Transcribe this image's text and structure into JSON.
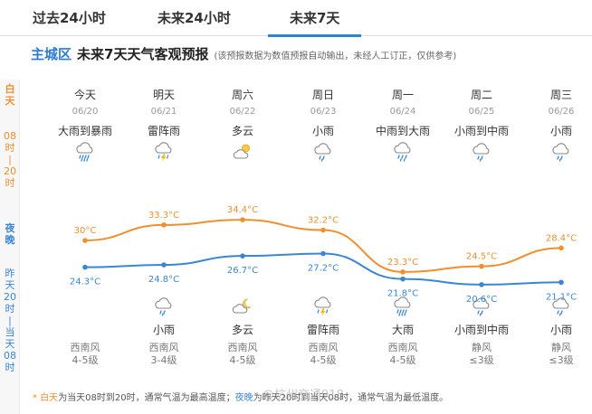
{
  "tabs": [
    {
      "label": "过去24小时"
    },
    {
      "label": "未来24小时"
    },
    {
      "label": "未来7天"
    }
  ],
  "header": {
    "city": "主城区",
    "title": "未来7天天气客观预报",
    "note": "(该预报数据为数值预报自动输出，未经人工订正，仅供参考)"
  },
  "side": {
    "day": "白\n天",
    "day_range": "08\n时\n|\n20\n时",
    "night": "夜\n晚",
    "night_range": "昨\n天\n20\n时\n|\n当\n天\n08\n时"
  },
  "days": [
    {
      "week": "今天",
      "date": "06/20",
      "day_weather": "大雨到暴雨",
      "day_icon": "heavy-rain",
      "night_weather": "",
      "night_icon": "",
      "wind_dir": "西南风",
      "wind_level": "4-5级"
    },
    {
      "week": "明天",
      "date": "06/21",
      "day_weather": "雷阵雨",
      "day_icon": "thunderstorm",
      "night_weather": "小雨",
      "night_icon": "light-rain",
      "wind_dir": "西南风",
      "wind_level": "3-4级"
    },
    {
      "week": "周六",
      "date": "06/22",
      "day_weather": "多云",
      "day_icon": "partly-cloudy",
      "night_weather": "多云",
      "night_icon": "partly-cloudy-night",
      "wind_dir": "西南风",
      "wind_level": "4-5级"
    },
    {
      "week": "周日",
      "date": "06/23",
      "day_weather": "小雨",
      "day_icon": "light-rain",
      "night_weather": "雷阵雨",
      "night_icon": "thunderstorm",
      "wind_dir": "西南风",
      "wind_level": "4-5级"
    },
    {
      "week": "周一",
      "date": "06/24",
      "day_weather": "中雨到大雨",
      "day_icon": "moderate-rain",
      "night_weather": "大雨",
      "night_icon": "heavy-rain",
      "wind_dir": "西南风",
      "wind_level": "4-5级"
    },
    {
      "week": "周二",
      "date": "06/25",
      "day_weather": "小雨到中雨",
      "day_icon": "light-rain",
      "night_weather": "小雨到中雨",
      "night_icon": "light-rain",
      "wind_dir": "静风",
      "wind_level": "≤3级"
    },
    {
      "week": "周三",
      "date": "06/26",
      "day_weather": "小雨",
      "day_icon": "light-rain",
      "night_weather": "小雨",
      "night_icon": "light-rain",
      "wind_dir": "静风",
      "wind_level": "≤3级"
    }
  ],
  "chart_data": {
    "type": "line",
    "categories": [
      "06/20",
      "06/21",
      "06/22",
      "06/23",
      "06/24",
      "06/25",
      "06/26"
    ],
    "series": [
      {
        "values": [
          30,
          33.3,
          34.4,
          32.2,
          23.3,
          24.5,
          28.4
        ],
        "labels": [
          "30°C",
          "33.3°C",
          "34.4°C",
          "32.2°C",
          "23.3°C",
          "24.5°C",
          "28.4°C"
        ],
        "color": "#ef8f2f"
      },
      {
        "values": [
          24.3,
          24.8,
          26.7,
          27.2,
          21.8,
          20.6,
          21.1
        ],
        "labels": [
          "24.3°C",
          "24.8°C",
          "26.7°C",
          "27.2°C",
          "21.8°C",
          "20.6°C",
          "21.1°C"
        ],
        "color": "#3a86d4"
      }
    ]
  },
  "footer": {
    "bullet": "*",
    "day_key": "白天",
    "day_text": "为当天08时到20时，通常气温为最高温度；",
    "night_key": "夜晚",
    "night_text": "为昨天20时到当天08时，通常气温为最低温度。"
  },
  "watermark": "@杭州交通918",
  "colors": {
    "accent": "#2a87d8",
    "day_line": "#ef8f2f",
    "night_line": "#3a86d4"
  }
}
